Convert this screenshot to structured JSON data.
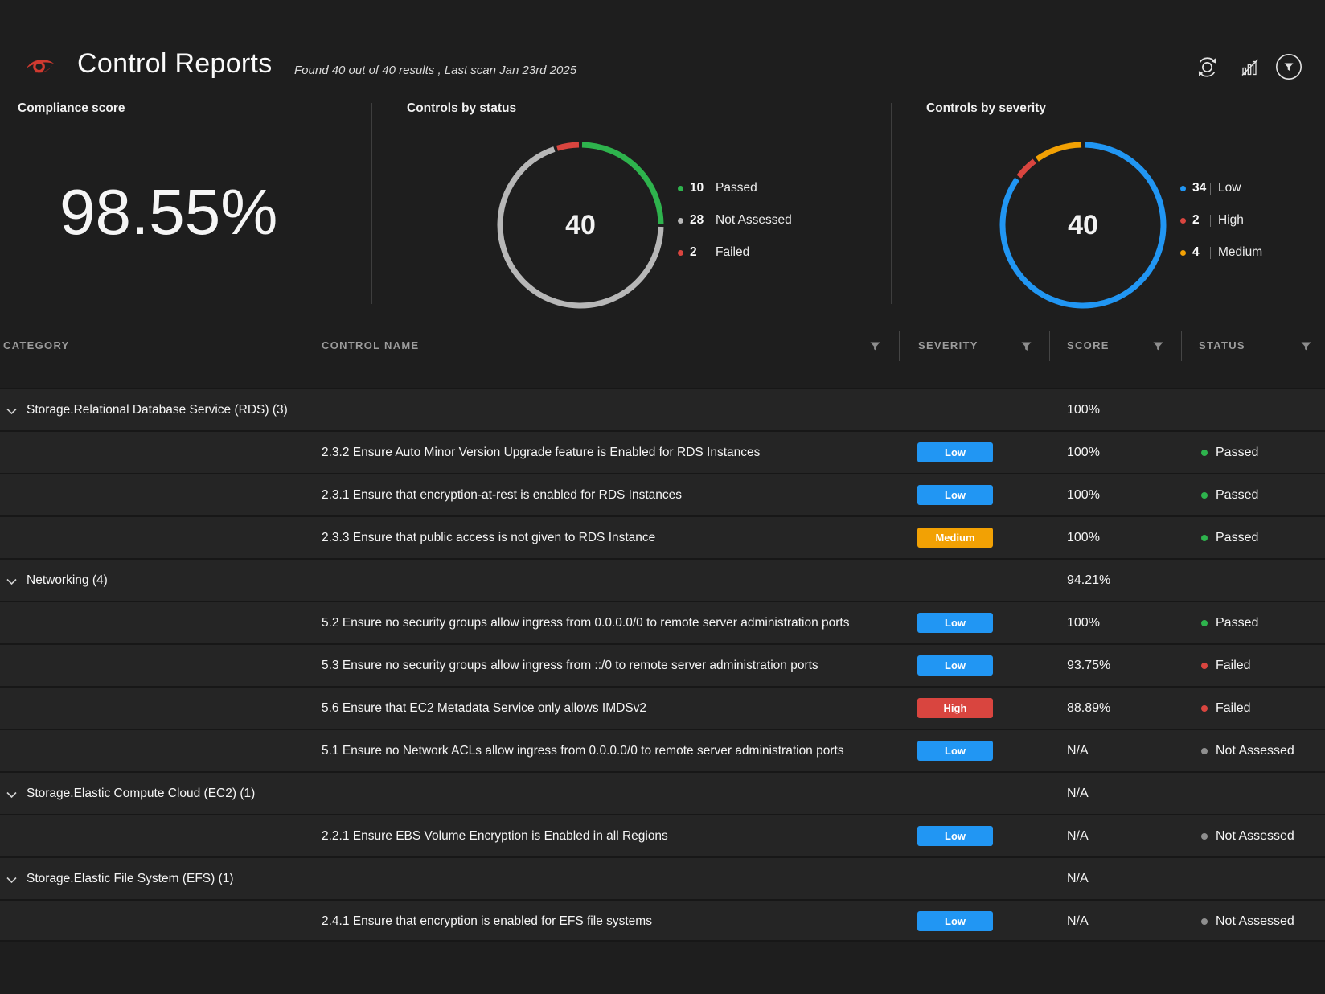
{
  "header": {
    "title": "Control Reports",
    "subtitle": "Found 40 out of 40 results , Last scan Jan 23rd 2025"
  },
  "panels": {
    "compliance": {
      "title": "Compliance score",
      "value": "98.55%"
    },
    "status": {
      "title": "Controls by status"
    },
    "severity": {
      "title": "Controls by severity"
    }
  },
  "chart_data": [
    {
      "type": "donut",
      "panel": "status",
      "title": "Controls by status",
      "center_label": "40",
      "total": 40,
      "legend_position": "right",
      "segments": [
        {
          "label": "Passed",
          "value": 10,
          "color": "#2eb34d"
        },
        {
          "label": "Not Assessed",
          "value": 28,
          "color": "#b7b7b7"
        },
        {
          "label": "Failed",
          "value": 2,
          "color": "#d9453f"
        }
      ]
    },
    {
      "type": "donut",
      "panel": "severity",
      "title": "Controls by severity",
      "center_label": "40",
      "total": 40,
      "legend_position": "right",
      "segments": [
        {
          "label": "Low",
          "value": 34,
          "color": "#2196f3"
        },
        {
          "label": "High",
          "value": 2,
          "color": "#d9453f"
        },
        {
          "label": "Medium",
          "value": 4,
          "color": "#f2a104"
        }
      ]
    }
  ],
  "table": {
    "columns": [
      "CATEGORY",
      "CONTROL NAME",
      "SEVERITY",
      "SCORE",
      "STATUS"
    ],
    "severity_colors": {
      "Low": "#2196f3",
      "Medium": "#f2a104",
      "High": "#d9453f"
    },
    "status_colors": {
      "Passed": "#2eb34d",
      "Failed": "#d9453f",
      "Not Assessed": "#8f8f8f"
    },
    "rows": [
      {
        "type": "group",
        "label": "Storage.Relational Database Service (RDS) (3)",
        "score": "100%"
      },
      {
        "type": "control",
        "name": "2.3.2 Ensure Auto Minor Version Upgrade feature is Enabled for RDS Instances",
        "severity": "Low",
        "score": "100%",
        "status": "Passed"
      },
      {
        "type": "control",
        "name": "2.3.1 Ensure that encryption-at-rest is enabled for RDS Instances",
        "severity": "Low",
        "score": "100%",
        "status": "Passed"
      },
      {
        "type": "control",
        "name": "2.3.3 Ensure that public access is not given to RDS Instance",
        "severity": "Medium",
        "score": "100%",
        "status": "Passed"
      },
      {
        "type": "group",
        "label": "Networking (4)",
        "score": "94.21%"
      },
      {
        "type": "control",
        "name": "5.2 Ensure no security groups allow ingress from 0.0.0.0/0 to remote server administration ports",
        "severity": "Low",
        "score": "100%",
        "status": "Passed"
      },
      {
        "type": "control",
        "name": "5.3 Ensure no security groups allow ingress from ::/0 to remote server administration ports",
        "severity": "Low",
        "score": "93.75%",
        "status": "Failed"
      },
      {
        "type": "control",
        "name": "5.6 Ensure that EC2 Metadata Service only allows IMDSv2",
        "severity": "High",
        "score": "88.89%",
        "status": "Failed"
      },
      {
        "type": "control",
        "name": "5.1 Ensure no Network ACLs allow ingress from 0.0.0.0/0 to remote server administration ports",
        "severity": "Low",
        "score": "N/A",
        "status": "Not Assessed"
      },
      {
        "type": "group",
        "label": "Storage.Elastic Compute Cloud (EC2) (1)",
        "score": "N/A"
      },
      {
        "type": "control",
        "name": "2.2.1 Ensure EBS Volume Encryption is Enabled in all Regions",
        "severity": "Low",
        "score": "N/A",
        "status": "Not Assessed"
      },
      {
        "type": "group",
        "label": "Storage.Elastic File System (EFS) (1)",
        "score": "N/A"
      },
      {
        "type": "control",
        "name": "2.4.1 Ensure that encryption is enabled for EFS file systems",
        "severity": "Low",
        "score": "N/A",
        "status": "Not Assessed"
      }
    ]
  }
}
